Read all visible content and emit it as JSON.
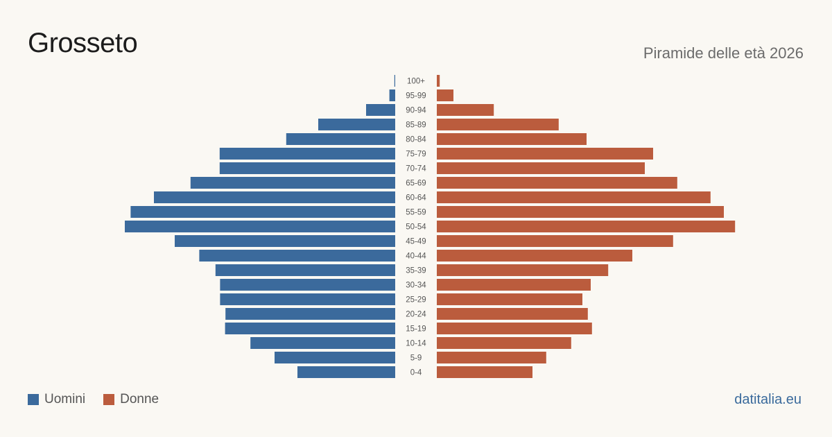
{
  "header": {
    "title": "Grosseto",
    "subtitle": "Piramide delle età 2026"
  },
  "legend": {
    "men_label": "Uomini",
    "women_label": "Donne"
  },
  "footer": {
    "source": "datitalia.eu"
  },
  "colors": {
    "men": "#3b6a9c",
    "women": "#bb5c3d",
    "background": "#faf8f3"
  },
  "chart_data": {
    "type": "bar",
    "orientation": "horizontal-pyramid",
    "title": "Piramide delle età 2026",
    "categories": [
      "100+",
      "95-99",
      "90-94",
      "85-89",
      "80-84",
      "75-79",
      "70-74",
      "65-69",
      "60-64",
      "55-59",
      "50-54",
      "45-49",
      "40-44",
      "35-39",
      "30-34",
      "25-29",
      "20-24",
      "15-19",
      "10-14",
      "5-9",
      "0-4"
    ],
    "series": [
      {
        "name": "Uomini",
        "values": [
          2,
          14,
          70,
          185,
          262,
          422,
          422,
          492,
          580,
          636,
          650,
          530,
          471,
          432,
          421,
          421,
          408,
          409,
          348,
          290,
          235
        ]
      },
      {
        "name": "Donne",
        "values": [
          7,
          40,
          137,
          293,
          360,
          520,
          500,
          578,
          658,
          690,
          717,
          568,
          470,
          412,
          370,
          350,
          363,
          373,
          323,
          263,
          230
        ]
      }
    ],
    "grid": false,
    "legend_position": "bottom-left"
  }
}
